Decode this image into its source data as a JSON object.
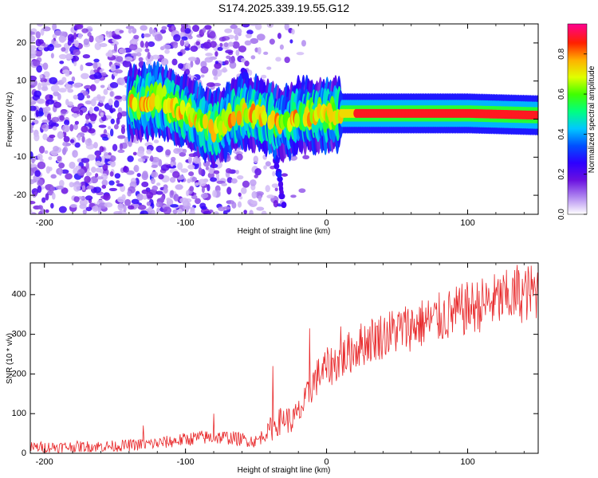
{
  "title": "S174.2025.339.19.55.G12",
  "colors": {
    "snr_line": "#e8282a",
    "axis": "#000000",
    "background": "#ffffff"
  },
  "chart_data": [
    {
      "type": "heatmap",
      "title": "",
      "xlabel": "Height of straight line (km)",
      "ylabel": "Frequency (Hz)",
      "xlim": [
        -210,
        150
      ],
      "ylim": [
        -25,
        25
      ],
      "xticks": [
        -200,
        -100,
        0,
        100
      ],
      "yticks": [
        -20,
        -10,
        0,
        10,
        20
      ],
      "colorbar": {
        "label": "Normalized spectral amplitude",
        "range": [
          0.0,
          0.95
        ],
        "ticks": [
          "0.0",
          "0.2",
          "0.4",
          "0.6",
          "0.8"
        ],
        "tick_values": [
          0.0,
          0.2,
          0.4,
          0.6,
          0.8
        ],
        "colormap": [
          "#ffffff",
          "#b088f0",
          "#6a10e0",
          "#2d00ff",
          "#0050ff",
          "#00c8ff",
          "#00ff80",
          "#40ff00",
          "#e0ff00",
          "#ffb000",
          "#ff2000",
          "#ff0090"
        ]
      },
      "features": {
        "noise_region_km": [
          -210,
          -30
        ],
        "signal_band_x": [
          -140,
          -120,
          -100,
          -80,
          -60,
          -45,
          -35,
          -28,
          -20,
          -10,
          0,
          10,
          20,
          50,
          100,
          150
        ],
        "signal_band_freq_hz": [
          4,
          5,
          2,
          -3,
          2,
          1,
          -1,
          -1,
          1,
          1,
          1,
          1.5,
          1.5,
          1.5,
          1.5,
          1
        ],
        "descending_trace_x": [
          -60,
          -50,
          -40,
          -35,
          -30
        ],
        "descending_trace_freq_hz": [
          12,
          5,
          0,
          -12,
          -24
        ],
        "secondary_trace_x": [
          -100,
          -85,
          -70,
          -60,
          -55
        ],
        "secondary_trace_freq_hz": [
          -2,
          -5,
          -3,
          0,
          2
        ]
      }
    },
    {
      "type": "line",
      "title": "",
      "xlabel": "Height of straight line (km)",
      "ylabel": "SNR (10 * v/v)",
      "xlim": [
        -210,
        150
      ],
      "ylim": [
        0,
        480
      ],
      "xticks": [
        -200,
        -100,
        0,
        100
      ],
      "yticks": [
        0,
        100,
        200,
        300,
        400
      ],
      "series": [
        {
          "name": "SNR",
          "color": "#e8282a",
          "trend_x": [
            -210,
            -150,
            -120,
            -90,
            -70,
            -50,
            -40,
            -35,
            -30,
            -25,
            -20,
            -15,
            -10,
            -5,
            0,
            10,
            20,
            30,
            50,
            80,
            100,
            120,
            150
          ],
          "trend_y": [
            15,
            18,
            25,
            40,
            40,
            30,
            60,
            75,
            90,
            80,
            100,
            130,
            175,
            200,
            215,
            235,
            265,
            285,
            310,
            340,
            365,
            385,
            410
          ],
          "spikes": [
            {
              "x": -38,
              "y": 220
            },
            {
              "x": -12,
              "y": 315
            },
            {
              "x": 10,
              "y": 320
            },
            {
              "x": 135,
              "y": 475
            },
            {
              "x": -80,
              "y": 100
            },
            {
              "x": -130,
              "y": 70
            }
          ]
        }
      ]
    }
  ]
}
